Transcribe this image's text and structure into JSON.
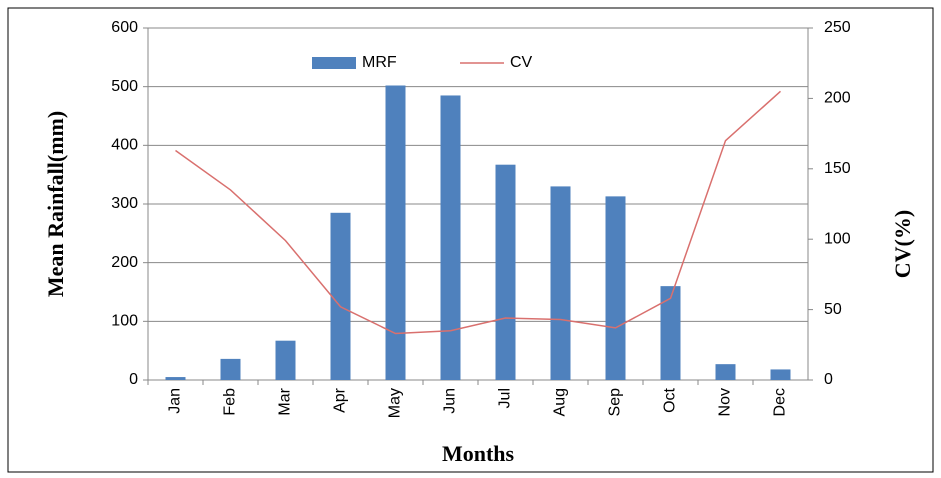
{
  "chart_data": {
    "type": "bar",
    "x_label": "Months",
    "y_label": "Mean Rainfall(mm)",
    "y2_label": "CV(%)",
    "categories": [
      "Jan",
      "Feb",
      "Mar",
      "Apr",
      "May",
      "Jun",
      "Jul",
      "Aug",
      "Sep",
      "Oct",
      "Nov",
      "Dec"
    ],
    "series": [
      {
        "name": "MRF",
        "type": "bar",
        "color": "#4f81bd",
        "values": [
          5,
          36,
          67,
          285,
          502,
          485,
          367,
          330,
          313,
          160,
          27,
          18
        ]
      },
      {
        "name": "CV",
        "type": "line",
        "axis": "y2",
        "color": "#d9706e",
        "values": [
          163,
          135,
          99,
          52,
          33,
          35,
          44,
          43,
          37,
          58,
          170,
          205
        ]
      }
    ],
    "ylim": [
      0,
      600
    ],
    "yticks": [
      0,
      100,
      200,
      300,
      400,
      500,
      600
    ],
    "y2lim": [
      0,
      250
    ],
    "y2ticks": [
      0,
      50,
      100,
      150,
      200,
      250
    ],
    "grid": true,
    "legend": "top"
  }
}
